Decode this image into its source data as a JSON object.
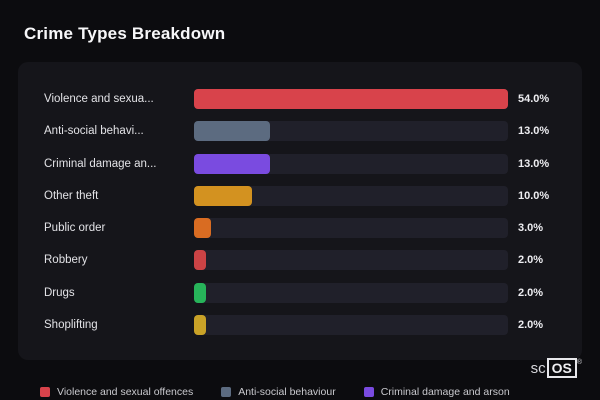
{
  "title": "Crime Types Breakdown",
  "chart_data": {
    "type": "bar",
    "orientation": "horizontal",
    "title": "Crime Types Breakdown",
    "categories": [
      "Violence and sexual offences",
      "Anti-social behaviour",
      "Criminal damage and arson",
      "Other theft",
      "Public order",
      "Robbery",
      "Drugs",
      "Shoplifting"
    ],
    "display_labels": [
      "Violence and sexua...",
      "Anti-social behavi...",
      "Criminal damage an...",
      "Other theft",
      "Public order",
      "Robbery",
      "Drugs",
      "Shoplifting"
    ],
    "values": [
      54.0,
      13.0,
      13.0,
      10.0,
      3.0,
      2.0,
      2.0,
      2.0
    ],
    "value_labels": [
      "54.0%",
      "13.0%",
      "13.0%",
      "10.0%",
      "3.0%",
      "2.0%",
      "2.0%",
      "2.0%"
    ],
    "bar_colors": [
      "#d8434b",
      "#5c6b80",
      "#7a4be0",
      "#d39220",
      "#d96c22",
      "#cb4345",
      "#27b45a",
      "#c9a227"
    ],
    "xlim": [
      0,
      54
    ],
    "xlabel": "",
    "ylabel": "",
    "grid": false,
    "legend_position": "bottom"
  },
  "legend": {
    "items": [
      {
        "label": "Violence and sexual offences",
        "color": "#d8434b"
      },
      {
        "label": "Anti-social behaviour",
        "color": "#5c6b80"
      },
      {
        "label": "Criminal damage and arson",
        "color": "#7a4be0"
      }
    ]
  },
  "watermark": {
    "prefix": "sc",
    "boxed": "OS",
    "reg": "®"
  }
}
